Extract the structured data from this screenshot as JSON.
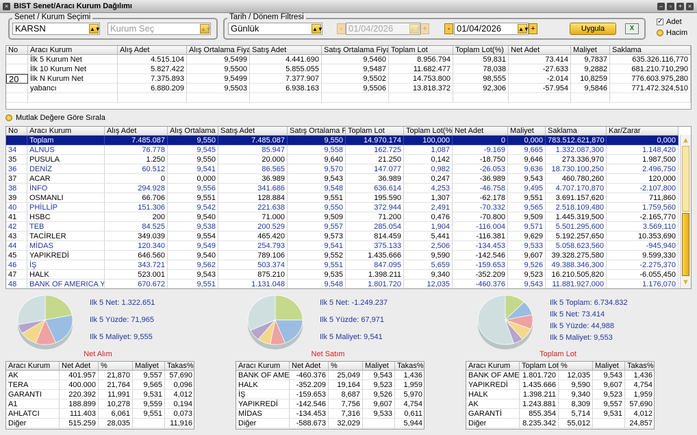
{
  "window": {
    "title": "BIST Senet/Aracı Kurum Dağılımı"
  },
  "filters": {
    "stock_group": "Senet / Kurum Seçimi",
    "stock": "KARSN",
    "broker_placeholder": "Kurum Seç",
    "date_group": "Tarih / Dönem Filtresi",
    "period": "Günlük",
    "date_from": "01/04/2026",
    "date_to": "01/04/2026",
    "apply": "Uygula"
  },
  "options": {
    "adet": "Adet",
    "hacim": "Hacim",
    "sort_abs": "Mutlak Değere Göre Sırala"
  },
  "summary_table": {
    "columns": [
      "No",
      "Aracı Kurum",
      "Alış Adet",
      "Alış Ortalama Fiyat",
      "Satış Adet",
      "Satış Ortalama Fiyat",
      "Toplam Lot",
      "Toplam Lot(%)",
      "Net Adet",
      "Maliyet",
      "Saklama"
    ],
    "rows": [
      [
        null,
        "İlk 5 Kurum Net",
        "4.515.104",
        "9,5499",
        "4.441.690",
        "9,5460",
        "8.956.794",
        "59,831",
        "73.414",
        "9,7837",
        "635.326.116,770"
      ],
      [
        null,
        "İlk 10 Kurum Net",
        "5.827.422",
        "9,5500",
        "5.855.055",
        "9,5487",
        "11.682.477",
        "78,038",
        "-27.633",
        "9,2882",
        "681.210.710,290"
      ],
      [
        "20",
        "İlk N Kurum Net",
        "7.375.893",
        "9,5499",
        "7.377.907",
        "9,5502",
        "14.753.800",
        "98,555",
        "-2.014",
        "10,8259",
        "776.603.975,280"
      ],
      [
        null,
        "yabancı",
        "6.880.209",
        "9,5503",
        "6.938.163",
        "9,5506",
        "13.818.372",
        "92,306",
        "-57.954",
        "9,5846",
        "771.472.324,510"
      ]
    ]
  },
  "main_table": {
    "columns": [
      "No",
      "Aracı Kurum",
      "Alış Adet",
      "Alış Ortalama Fiy",
      "Satış Adet",
      "Satış Ortalama Fi",
      "Toplam Lot",
      "Toplam Lot(%",
      "Net Adet",
      "Maliyet",
      "Saklama",
      "Kar/Zarar"
    ],
    "rows": [
      [
        null,
        "Toplam",
        "7.485.087",
        "9,550",
        "7.485.087",
        "9,550",
        "14.970.174",
        "100,000",
        "0",
        "0,000",
        "783.512.621,870",
        "0,000"
      ],
      [
        "34",
        "ALNUS",
        "76.778",
        "9,545",
        "85.947",
        "9,558",
        "162.725",
        "1,087",
        "-9.169",
        "9,665",
        "1.332.087,300",
        "1.148,420"
      ],
      [
        "35",
        "PUSULA",
        "1.250",
        "9,550",
        "20.000",
        "9,640",
        "21.250",
        "0,142",
        "-18.750",
        "9,646",
        "273.336,970",
        "1.987,500"
      ],
      [
        "36",
        "DENİZ",
        "60.512",
        "9,541",
        "86.565",
        "9,570",
        "147.077",
        "0,982",
        "-26.053",
        "9,636",
        "18.730.100,250",
        "2.496,750"
      ],
      [
        "37",
        "ACAR",
        "0",
        "0,000",
        "36.989",
        "9,543",
        "36.989",
        "0,247",
        "-36.989",
        "9,543",
        "460.780,260",
        "120,000"
      ],
      [
        "38",
        "İNFO",
        "294.928",
        "9,556",
        "341.686",
        "9,548",
        "636.614",
        "4,253",
        "-46.758",
        "9,495",
        "4.707.170,870",
        "-2.107,800"
      ],
      [
        "39",
        "OSMANLI",
        "66.706",
        "9,551",
        "128.884",
        "9,551",
        "195.590",
        "1,307",
        "-62.178",
        "9,551",
        "3.691.157,620",
        "711,860"
      ],
      [
        "40",
        "PHİLLİP",
        "151.306",
        "9,542",
        "221.638",
        "9,550",
        "372.944",
        "2,491",
        "-70.332",
        "9,565",
        "2.518.109,480",
        "1.759,560"
      ],
      [
        "41",
        "HSBC",
        "200",
        "9,540",
        "71.000",
        "9,509",
        "71.200",
        "0,476",
        "-70.800",
        "9,509",
        "1.445.319,500",
        "-2.165,770"
      ],
      [
        "42",
        "TEB",
        "84.525",
        "9,538",
        "200.529",
        "9,557",
        "285.054",
        "1,904",
        "-116.004",
        "9,571",
        "5.501.295,600",
        "3.569,110"
      ],
      [
        "43",
        "TACİRLER",
        "349.039",
        "9,554",
        "465.420",
        "9,573",
        "814.459",
        "5,441",
        "-116.381",
        "9,629",
        "5.192.257,650",
        "10.353,690"
      ],
      [
        "44",
        "MİDAS",
        "120.340",
        "9,549",
        "254.793",
        "9,541",
        "375.133",
        "2,506",
        "-134.453",
        "9,533",
        "5.058.623,560",
        "-945,940"
      ],
      [
        "45",
        "YAPIKREDİ",
        "646.560",
        "9,540",
        "789.106",
        "9,552",
        "1.435.666",
        "9,590",
        "-142.546",
        "9,607",
        "39.328.275,580",
        "9.599,330"
      ],
      [
        "46",
        "İŞ",
        "343.721",
        "9,562",
        "503.374",
        "9,551",
        "847.095",
        "5,659",
        "-159.653",
        "9,526",
        "49.388.346,300",
        "-2.275,370"
      ],
      [
        "47",
        "HALK",
        "523.001",
        "9,543",
        "875.210",
        "9,535",
        "1.398.211",
        "9,340",
        "-352.209",
        "9,523",
        "16.210.505,820",
        "-6.055,450"
      ],
      [
        "48",
        "BANK OF AMERICA Y",
        "670.672",
        "9,551",
        "1.131.048",
        "9,548",
        "1.801.720",
        "12,035",
        "-460.376",
        "9,543",
        "11.881.927,000",
        "1.176,070"
      ]
    ]
  },
  "panels": [
    {
      "title": "Net Alım",
      "stats": [
        "Ilk 5 Net: 1.322.651",
        "Ilk 5 Yüzde: 71,965",
        "Ilk 5 Maliyet: 9,555"
      ],
      "colors": [
        "#c5d98c",
        "#9bbde3",
        "#eea2a2",
        "#f3d88c",
        "#b6a4cc",
        "#cfdfdf"
      ],
      "table": {
        "columns": [
          "Aracı Kurum",
          "Net Adet",
          "%",
          "Maliyet",
          "Takas%"
        ],
        "rows": [
          [
            "AK",
            "401.957",
            "21,870",
            "9,557",
            "57,690"
          ],
          [
            "TERA",
            "400.000",
            "21,764",
            "9,565",
            "0,096"
          ],
          [
            "GARANTI",
            "220.392",
            "11,991",
            "9,531",
            "4,012"
          ],
          [
            "A1",
            "188.899",
            "10,278",
            "9,559",
            "0,194"
          ],
          [
            "AHLATCI",
            "111.403",
            "6,061",
            "9,551",
            "0,073"
          ],
          [
            "Diğer",
            "515.259",
            "28,035",
            null,
            "11,916"
          ]
        ]
      }
    },
    {
      "title": "Net Satım",
      "stats": [
        "Ilk 5 Net: -1.249.237",
        "Ilk 5 Yüzde: 67,971",
        "Ilk 5 Maliyet: 9,541"
      ],
      "colors": [
        "#c5d98c",
        "#9bbde3",
        "#eea2a2",
        "#f3d88c",
        "#b6a4cc",
        "#cfdfdf"
      ],
      "table": {
        "columns": [
          "Aracı Kurum",
          "Net Adet",
          "%",
          "Maliyet",
          "Takas%"
        ],
        "rows": [
          [
            "BANK OF AME",
            "-460.376",
            "25,049",
            "9,543",
            "1,436"
          ],
          [
            "HALK",
            "-352.209",
            "19,164",
            "9,523",
            "1,959"
          ],
          [
            "İŞ",
            "-159.653",
            "8,687",
            "9,526",
            "5,970"
          ],
          [
            "YAPIKREDİ",
            "-142.546",
            "7,756",
            "9,607",
            "4,754"
          ],
          [
            "MİDAS",
            "-134.453",
            "7,316",
            "9,533",
            "0,611"
          ],
          [
            "Diğer",
            "-588.673",
            "32,029",
            null,
            "5,944"
          ]
        ]
      }
    },
    {
      "title": "Toplam Lot",
      "stats": [
        "Ilk 5 Toplam: 6.734.832",
        "Ilk 5 Net: 73.414",
        "Ilk 5 Yüzde: 44,988",
        "Ilk 5 Maliyet: 9,553"
      ],
      "colors": [
        "#c5d98c",
        "#9bbde3",
        "#eea2a2",
        "#f3d88c",
        "#b6a4cc",
        "#cfdfdf"
      ],
      "table": {
        "columns": [
          "Aracı Kurum",
          "Toplam Lot",
          "%",
          "Maliyet",
          "Takas%"
        ],
        "rows": [
          [
            "BANK OF AME",
            "1.801.720",
            "12,035",
            "9,543",
            "1,436"
          ],
          [
            "YAPIKREDİ",
            "1.435.666",
            "9,590",
            "9,607",
            "4,754"
          ],
          [
            "HALK",
            "1.398.211",
            "9,340",
            "9,523",
            "1,959"
          ],
          [
            "AK",
            "1.243.881",
            "8,309",
            "9,557",
            "57,690"
          ],
          [
            "GARANTİ",
            "855.354",
            "5,714",
            "9,531",
            "4,012"
          ],
          [
            "Diğer",
            "8.235.342",
            "55,012",
            null,
            "24,857"
          ]
        ]
      }
    }
  ]
}
